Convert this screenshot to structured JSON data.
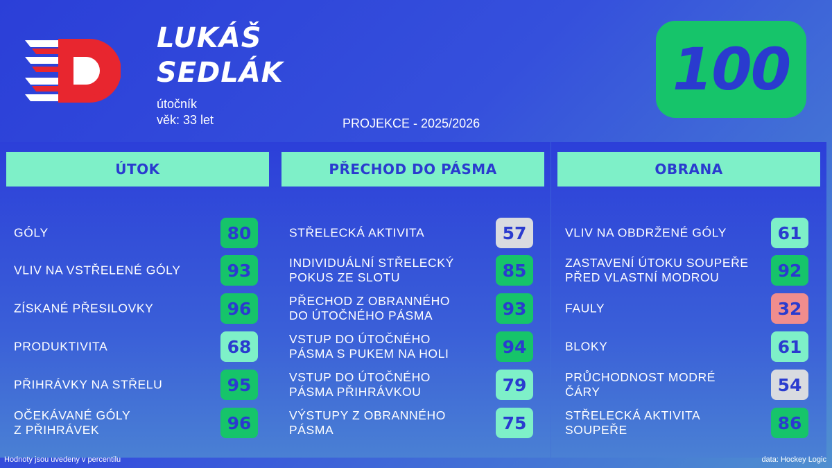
{
  "player": {
    "first_name": "LUKÁŠ",
    "last_name": "SEDLÁK",
    "position": "útočník",
    "age": "věk: 33 let"
  },
  "projection": "PROJEKCE - 2025/2026",
  "overall": "100",
  "colors": {
    "high": "#16c46a",
    "mid": "#7ef0c8",
    "neutral": "#d9dbe0",
    "low": "#f08d8d",
    "text_accent": "#2a3bcf"
  },
  "panels": [
    {
      "title": "ÚTOK",
      "rows": [
        {
          "label": "GÓLY",
          "value": "80",
          "tier": "high"
        },
        {
          "label": "VLIV NA VSTŘELENÉ GÓLY",
          "value": "93",
          "tier": "high"
        },
        {
          "label": "ZÍSKANÉ PŘESILOVKY",
          "value": "96",
          "tier": "high"
        },
        {
          "label": "PRODUKTIVITA",
          "value": "68",
          "tier": "mid"
        },
        {
          "label": "PŘIHRÁVKY NA STŘELU",
          "value": "95",
          "tier": "high"
        },
        {
          "label": "OČEKÁVANÉ GÓLY\nZ PŘIHRÁVEK",
          "value": "96",
          "tier": "high"
        }
      ]
    },
    {
      "title": "PŘECHOD DO PÁSMA",
      "rows": [
        {
          "label": "STŘELECKÁ AKTIVITA",
          "value": "57",
          "tier": "neutral"
        },
        {
          "label": "INDIVIDUÁLNÍ STŘELECKÝ\nPOKUS ZE SLOTU",
          "value": "85",
          "tier": "high"
        },
        {
          "label": "PŘECHOD Z OBRANNÉHO\nDO ÚTOČNÉHO PÁSMA",
          "value": "93",
          "tier": "high"
        },
        {
          "label": "VSTUP DO ÚTOČNÉHO\nPÁSMA S PUKEM NA HOLI",
          "value": "94",
          "tier": "high"
        },
        {
          "label": "VSTUP DO ÚTOČNÉHO\nPÁSMA PŘIHRÁVKOU",
          "value": "79",
          "tier": "mid"
        },
        {
          "label": "VÝSTUPY Z OBRANNÉHO\nPÁSMA",
          "value": "75",
          "tier": "mid"
        }
      ]
    },
    {
      "title": "OBRANA",
      "rows": [
        {
          "label": "VLIV NA OBDRŽENÉ GÓLY",
          "value": "61",
          "tier": "mid"
        },
        {
          "label": "ZASTAVENÍ ÚTOKU SOUPEŘE\nPŘED VLASTNÍ MODROU",
          "value": "92",
          "tier": "high"
        },
        {
          "label": "FAULY",
          "value": "32",
          "tier": "low"
        },
        {
          "label": "BLOKY",
          "value": "61",
          "tier": "mid"
        },
        {
          "label": "PRŮCHODNOST MODRÉ ČÁRY",
          "value": "54",
          "tier": "neutral"
        },
        {
          "label": "STŘELECKÁ AKTIVITA\nSOUPEŘE",
          "value": "86",
          "tier": "high"
        }
      ]
    }
  ],
  "footer": {
    "note": "Hodnoty jsou uvedeny v percentilu",
    "source": "data: Hockey Logic"
  }
}
